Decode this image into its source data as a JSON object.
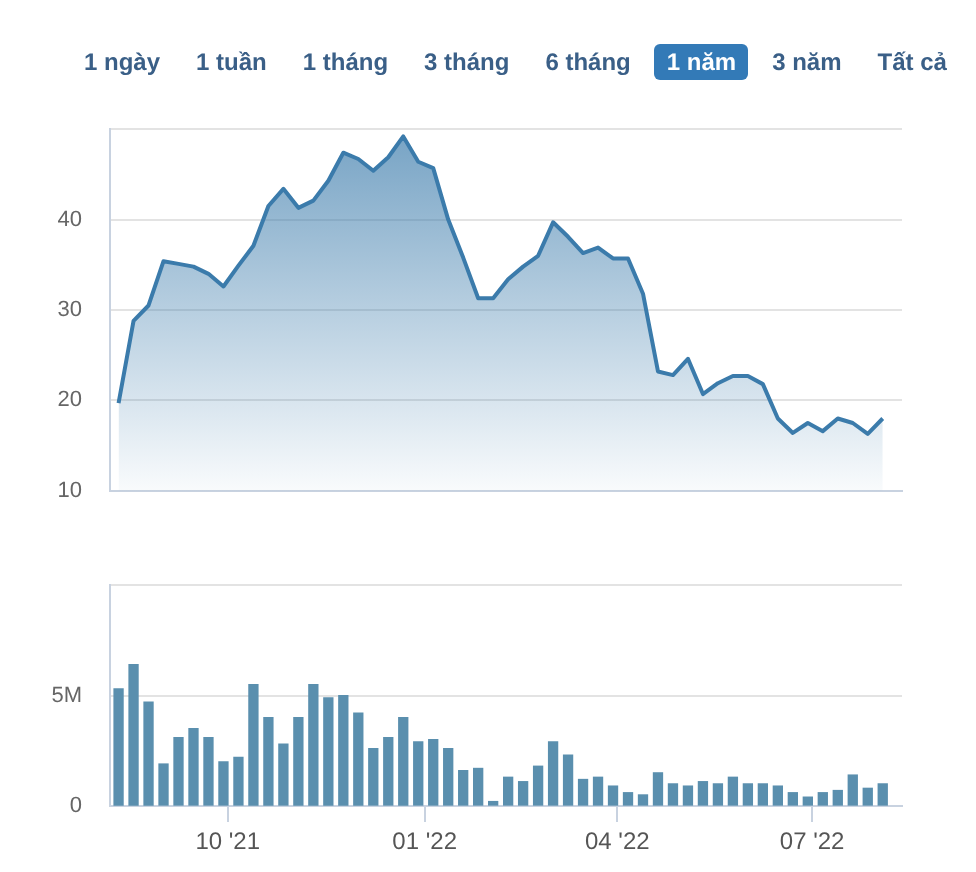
{
  "chart_data": [
    {
      "type": "area",
      "annotations": [
        "1 ngày",
        "1 tuần",
        "1 tháng",
        "3 tháng",
        "6 tháng",
        "1 năm",
        "3 năm",
        "Tất cả"
      ],
      "x": [
        "2021-08-11",
        "2021-08-18",
        "2021-08-25",
        "2021-09-01",
        "2021-09-08",
        "2021-09-15",
        "2021-09-22",
        "2021-09-29",
        "2021-10-06",
        "2021-10-13",
        "2021-10-20",
        "2021-10-27",
        "2021-11-03",
        "2021-11-10",
        "2021-11-17",
        "2021-11-24",
        "2021-12-01",
        "2021-12-08",
        "2021-12-15",
        "2021-12-22",
        "2021-12-29",
        "2022-01-05",
        "2022-01-12",
        "2022-01-19",
        "2022-01-26",
        "2022-02-02",
        "2022-02-09",
        "2022-02-16",
        "2022-02-23",
        "2022-03-02",
        "2022-03-09",
        "2022-03-16",
        "2022-03-23",
        "2022-03-30",
        "2022-04-06",
        "2022-04-13",
        "2022-04-20",
        "2022-04-27",
        "2022-05-04",
        "2022-05-11",
        "2022-05-18",
        "2022-05-25",
        "2022-06-01",
        "2022-06-08",
        "2022-06-15",
        "2022-06-22",
        "2022-06-29",
        "2022-07-06",
        "2022-07-13",
        "2022-07-20",
        "2022-07-27",
        "2022-08-03"
      ],
      "series": [
        {
          "color": "#3b7bab",
          "values": [
            19.7,
            28.8,
            30.5,
            35.4,
            35.1,
            34.8,
            34.0,
            32.6,
            34.9,
            37.1,
            41.5,
            43.4,
            41.3,
            42.1,
            44.3,
            47.4,
            46.7,
            45.4,
            46.9,
            49.2,
            46.4,
            45.7,
            40.0,
            35.8,
            31.3,
            31.3,
            33.4,
            34.8,
            36.0,
            39.7,
            38.1,
            36.3,
            36.9,
            35.7,
            35.7,
            31.8,
            23.2,
            22.8,
            24.6,
            20.7,
            21.9,
            22.7,
            22.7,
            21.8,
            18.0,
            16.4,
            17.5,
            16.6,
            18.0,
            17.5,
            16.3,
            18.0
          ]
        }
      ],
      "xlim": [
        "2021-08-07",
        "2022-08-12"
      ],
      "ylim": [
        10,
        50
      ],
      "yticks": [
        10,
        20,
        30,
        40,
        {
          "value": 50,
          "label": null
        }
      ],
      "grid": "y",
      "tick_labels": "y",
      "marker": "none"
    },
    {
      "type": "bar",
      "x": [
        "2021-08-11",
        "2021-08-18",
        "2021-08-25",
        "2021-09-01",
        "2021-09-08",
        "2021-09-15",
        "2021-09-22",
        "2021-09-29",
        "2021-10-06",
        "2021-10-13",
        "2021-10-20",
        "2021-10-27",
        "2021-11-03",
        "2021-11-10",
        "2021-11-17",
        "2021-11-24",
        "2021-12-01",
        "2021-12-08",
        "2021-12-15",
        "2021-12-22",
        "2021-12-29",
        "2022-01-05",
        "2022-01-12",
        "2022-01-19",
        "2022-01-26",
        "2022-02-02",
        "2022-02-09",
        "2022-02-16",
        "2022-02-23",
        "2022-03-02",
        "2022-03-09",
        "2022-03-16",
        "2022-03-23",
        "2022-03-30",
        "2022-04-06",
        "2022-04-13",
        "2022-04-20",
        "2022-04-27",
        "2022-05-04",
        "2022-05-11",
        "2022-05-18",
        "2022-05-25",
        "2022-06-01",
        "2022-06-08",
        "2022-06-15",
        "2022-06-22",
        "2022-06-29",
        "2022-07-06",
        "2022-07-13",
        "2022-07-20",
        "2022-07-27",
        "2022-08-03"
      ],
      "series": [
        {
          "color": "#5a8fae",
          "values": [
            5300000,
            6400000,
            4700000,
            1900000,
            3100000,
            3500000,
            3100000,
            2000000,
            2200000,
            5500000,
            4000000,
            2800000,
            4000000,
            5500000,
            4900000,
            5000000,
            4200000,
            2600000,
            3100000,
            4000000,
            2900000,
            3000000,
            2600000,
            1600000,
            1700000,
            200000,
            1300000,
            1100000,
            1800000,
            2900000,
            2300000,
            1200000,
            1300000,
            900000,
            600000,
            500000,
            1500000,
            1000000,
            900000,
            1100000,
            1000000,
            1300000,
            1000000,
            1000000,
            900000,
            600000,
            400000,
            600000,
            700000,
            1400000,
            800000,
            1000000
          ]
        }
      ],
      "xlim": [
        "2021-08-07",
        "2022-08-12"
      ],
      "xticks": [
        {
          "value": "2021-10-01",
          "label": "10 '21"
        },
        {
          "value": "2022-01-01",
          "label": "01 '22"
        },
        {
          "value": "2022-04-01",
          "label": "04 '22"
        },
        {
          "value": "2022-07-01",
          "label": "07 '22"
        }
      ],
      "ylim": [
        0,
        10000000
      ],
      "yticks": [
        0,
        {
          "value": 5000000,
          "label": "5M"
        },
        {
          "value": 10000000,
          "label": null
        }
      ],
      "grid": "y"
    }
  ]
}
